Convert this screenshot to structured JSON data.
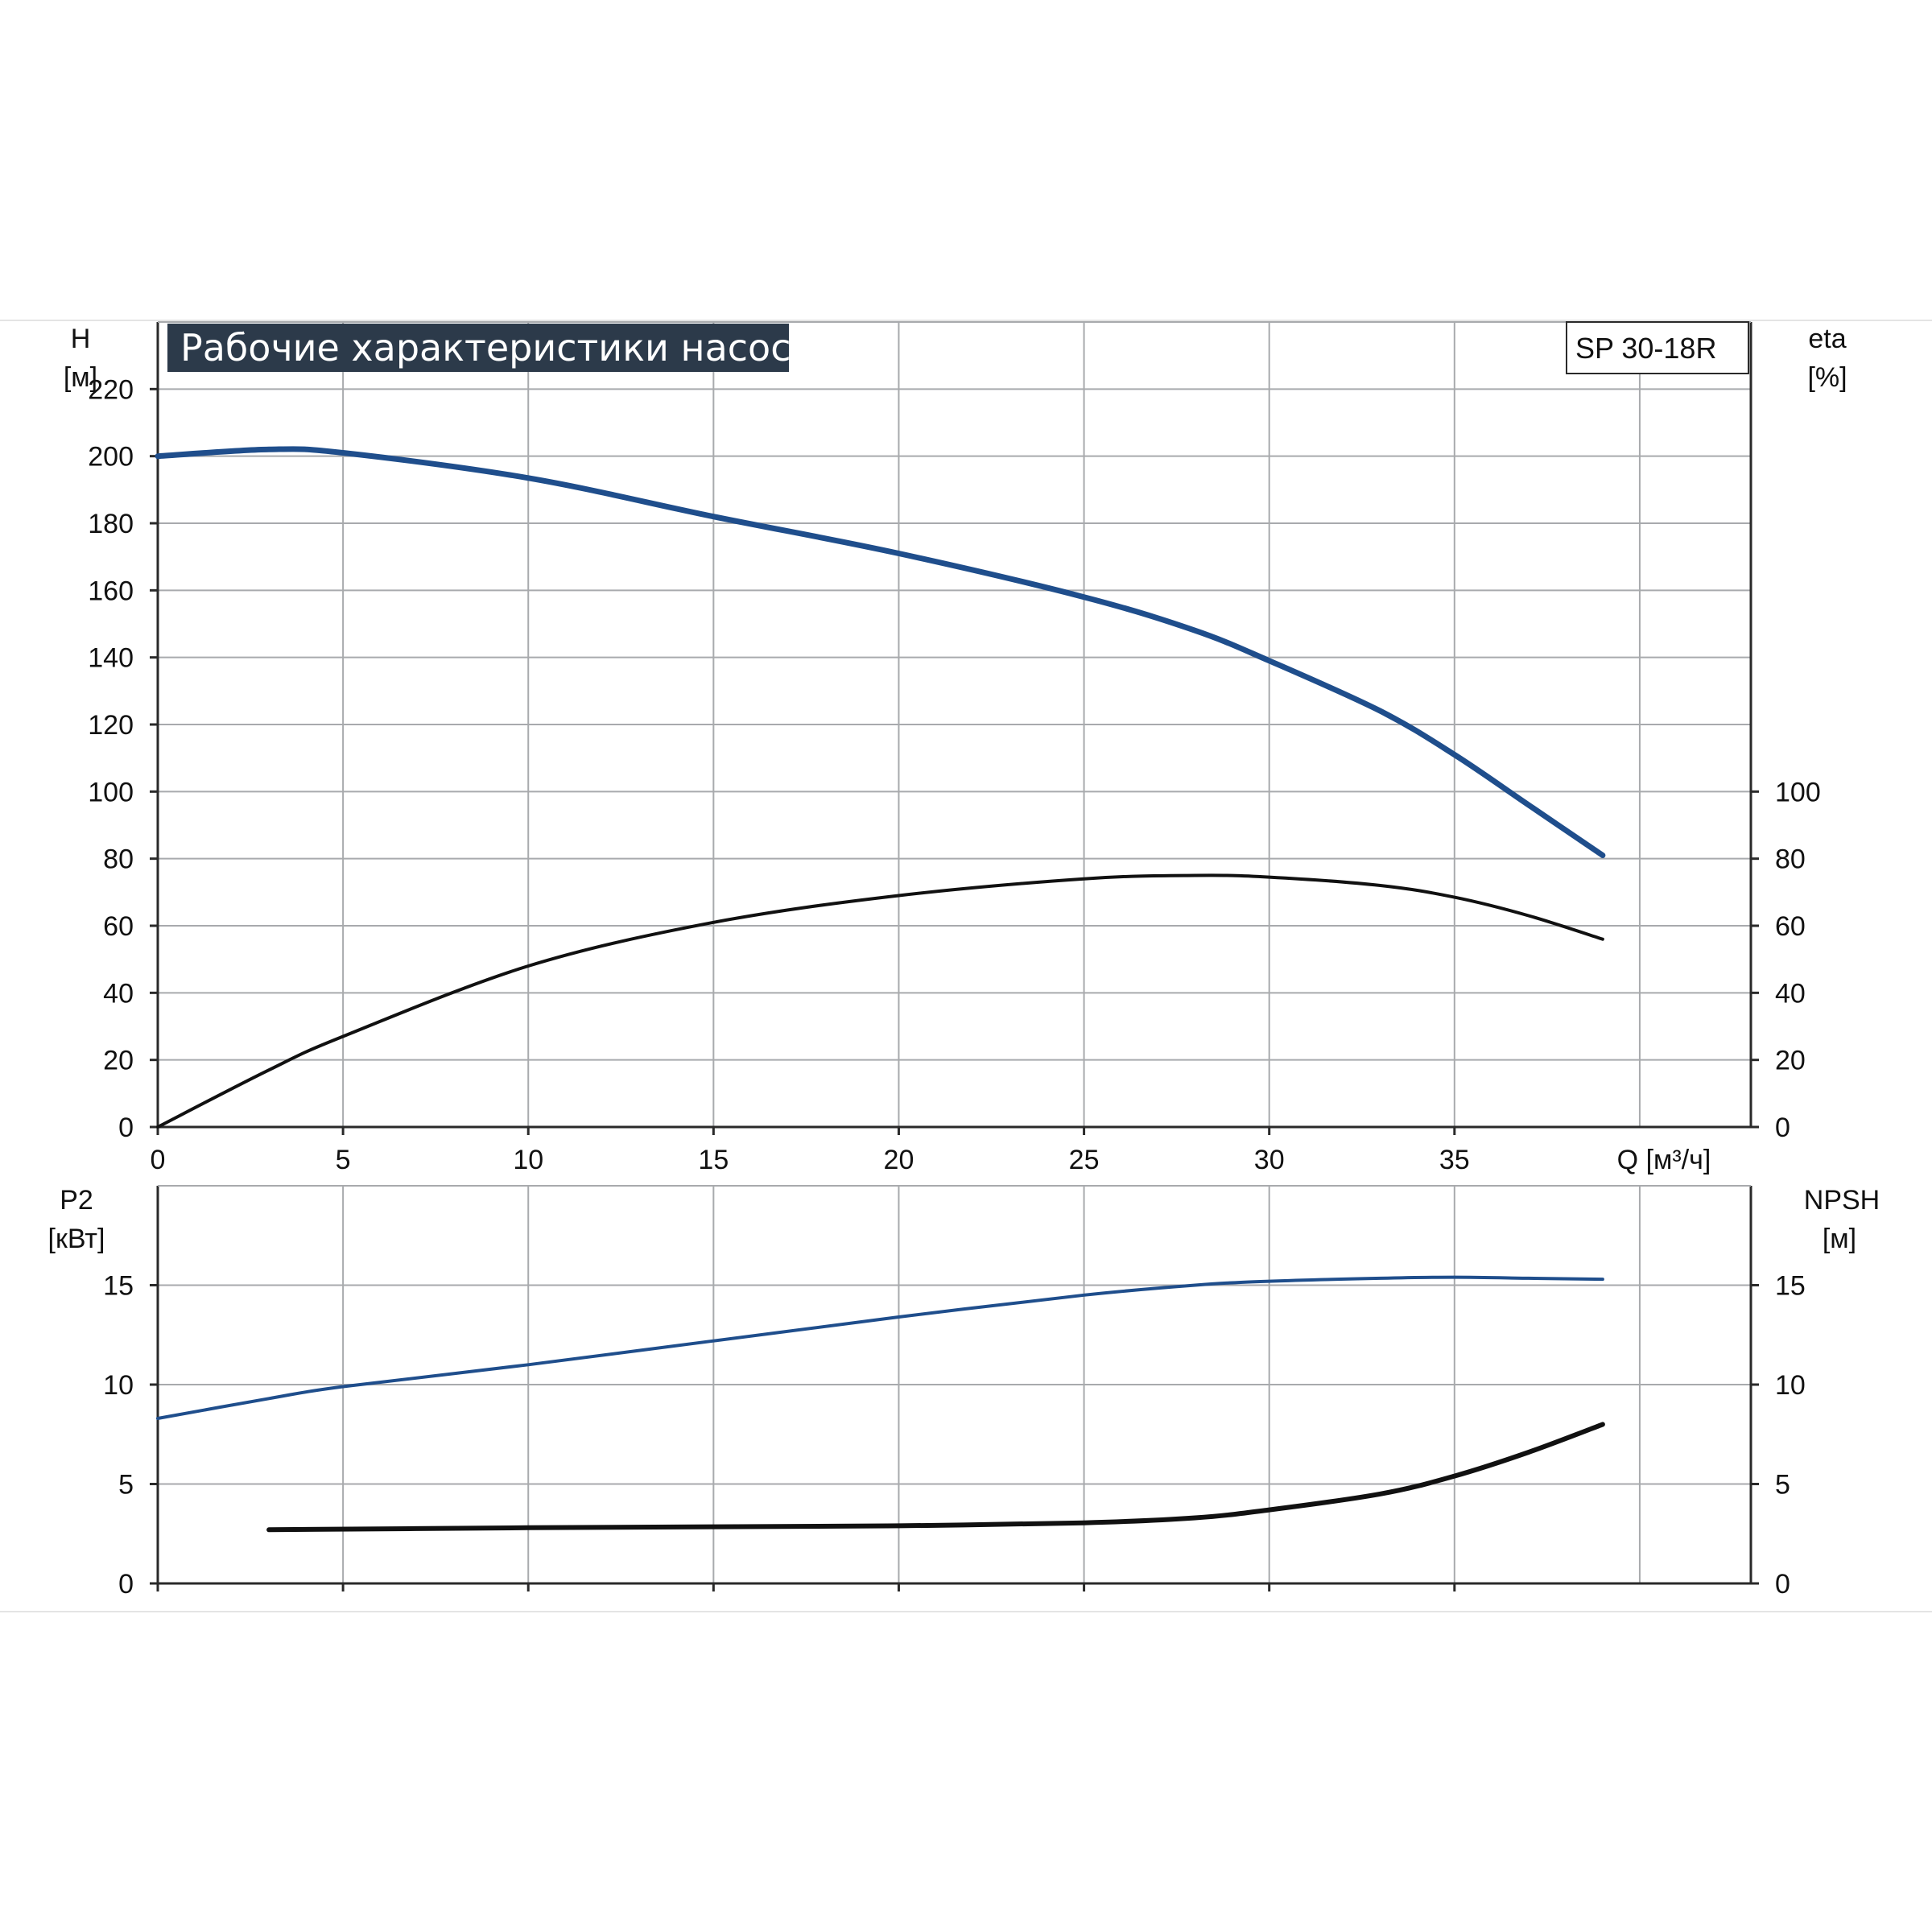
{
  "chart_data": {
    "title": "Рабочие характеристики насоса",
    "model": "SP 30-18R",
    "x_axis": {
      "label": "Q [м³/ч]",
      "ticks": [
        "0",
        "5",
        "10",
        "15",
        "20",
        "25",
        "30",
        "35"
      ],
      "range": [
        0,
        43
      ]
    },
    "colors": {
      "head": "#1f4e8c",
      "efficiency": "#111111",
      "power": "#1f4e8c",
      "npsh": "#111111",
      "title_bg": "#2c3a4a"
    },
    "charts": [
      {
        "type": "line",
        "name": "top",
        "y_left": {
          "label": "H",
          "unit": "[м]",
          "ticks": [
            "0",
            "20",
            "40",
            "60",
            "80",
            "100",
            "120",
            "140",
            "160",
            "180",
            "200",
            "220"
          ],
          "range": [
            0,
            240
          ]
        },
        "y_right": {
          "label": "eta",
          "unit": "[%]",
          "ticks": [
            "0",
            "20",
            "40",
            "60",
            "80",
            "100"
          ],
          "range": [
            0,
            240
          ]
        },
        "grid": true,
        "series": [
          {
            "key": "head",
            "axis": "left",
            "width": 7,
            "points": [
              [
                0,
                200
              ],
              [
                3,
                202
              ],
              [
                5,
                201
              ],
              [
                10,
                193.5
              ],
              [
                15,
                182
              ],
              [
                20,
                171
              ],
              [
                25,
                158
              ],
              [
                28,
                148
              ],
              [
                30,
                139
              ],
              [
                33,
                124
              ],
              [
                35,
                111
              ],
              [
                37,
                96
              ],
              [
                39,
                81
              ]
            ]
          },
          {
            "key": "efficiency",
            "axis": "right",
            "width": 4,
            "points": [
              [
                0,
                0
              ],
              [
                3,
                17
              ],
              [
                5,
                27
              ],
              [
                10,
                48
              ],
              [
                15,
                61
              ],
              [
                20,
                69
              ],
              [
                25,
                74
              ],
              [
                28,
                75
              ],
              [
                30,
                74.5
              ],
              [
                33,
                72
              ],
              [
                35,
                68.5
              ],
              [
                37,
                63
              ],
              [
                39,
                56
              ]
            ]
          }
        ]
      },
      {
        "type": "line",
        "name": "bottom",
        "y_left": {
          "label": "P2",
          "unit": "[кВт]",
          "ticks": [
            "0",
            "5",
            "10",
            "15"
          ],
          "range": [
            0,
            20
          ]
        },
        "y_right": {
          "label": "NPSH",
          "unit": "[м]",
          "ticks": [
            "0",
            "5",
            "10",
            "15"
          ],
          "range": [
            0,
            20
          ]
        },
        "grid": true,
        "series": [
          {
            "key": "power",
            "axis": "left",
            "width": 4,
            "points": [
              [
                0,
                8.3
              ],
              [
                3,
                9.3
              ],
              [
                5,
                9.9
              ],
              [
                10,
                11
              ],
              [
                15,
                12.2
              ],
              [
                20,
                13.4
              ],
              [
                25,
                14.5
              ],
              [
                28,
                15
              ],
              [
                30,
                15.2
              ],
              [
                33,
                15.35
              ],
              [
                35,
                15.4
              ],
              [
                37,
                15.35
              ],
              [
                39,
                15.3
              ]
            ]
          },
          {
            "key": "npsh",
            "axis": "right",
            "width": 6,
            "points": [
              [
                3,
                2.7
              ],
              [
                10,
                2.8
              ],
              [
                15,
                2.85
              ],
              [
                20,
                2.9
              ],
              [
                25,
                3.05
              ],
              [
                28,
                3.3
              ],
              [
                30,
                3.7
              ],
              [
                33,
                4.5
              ],
              [
                35,
                5.4
              ],
              [
                37,
                6.6
              ],
              [
                39,
                8
              ]
            ]
          }
        ]
      }
    ]
  }
}
